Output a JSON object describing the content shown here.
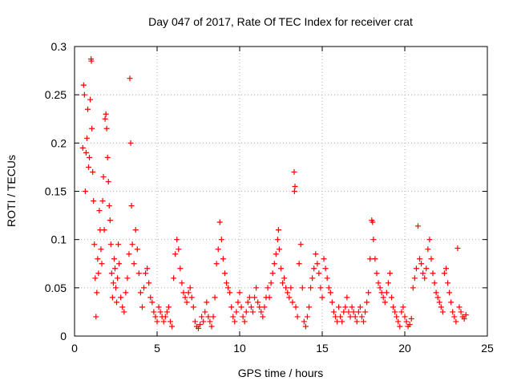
{
  "chart_data": {
    "type": "scatter",
    "title": "Day 047 of 2017, Rate Of TEC Index for receiver crat",
    "xlabel": "GPS time / hours",
    "ylabel": "ROTI / TECUs",
    "xlim": [
      0,
      25
    ],
    "ylim": [
      0,
      0.3
    ],
    "xticks": [
      "0",
      "5",
      "10",
      "15",
      "20",
      "25"
    ],
    "yticks": [
      "0",
      "0.05",
      "0.1",
      "0.15",
      "0.2",
      "0.25",
      "0.3"
    ],
    "grid": true,
    "marker": "+",
    "marker_color": "#ff0000",
    "series": [
      {
        "name": "ROTI",
        "points": [
          [
            0.5,
            0.195
          ],
          [
            0.55,
            0.26
          ],
          [
            0.6,
            0.25
          ],
          [
            0.65,
            0.15
          ],
          [
            0.7,
            0.19
          ],
          [
            0.75,
            0.205
          ],
          [
            0.8,
            0.235
          ],
          [
            0.85,
            0.175
          ],
          [
            0.9,
            0.185
          ],
          [
            0.95,
            0.245
          ],
          [
            1.0,
            0.287
          ],
          [
            1.02,
            0.285
          ],
          [
            1.05,
            0.215
          ],
          [
            1.1,
            0.17
          ],
          [
            1.15,
            0.14
          ],
          [
            1.2,
            0.095
          ],
          [
            1.25,
            0.06
          ],
          [
            1.3,
            0.02
          ],
          [
            1.35,
            0.045
          ],
          [
            1.4,
            0.08
          ],
          [
            1.45,
            0.065
          ],
          [
            1.5,
            0.13
          ],
          [
            1.55,
            0.11
          ],
          [
            1.6,
            0.09
          ],
          [
            1.65,
            0.075
          ],
          [
            1.7,
            0.14
          ],
          [
            1.75,
            0.165
          ],
          [
            1.8,
            0.11
          ],
          [
            1.85,
            0.225
          ],
          [
            1.9,
            0.23
          ],
          [
            1.95,
            0.215
          ],
          [
            2.0,
            0.185
          ],
          [
            2.05,
            0.16
          ],
          [
            2.1,
            0.135
          ],
          [
            2.15,
            0.12
          ],
          [
            2.2,
            0.095
          ],
          [
            2.25,
            0.065
          ],
          [
            2.3,
            0.04
          ],
          [
            2.35,
            0.055
          ],
          [
            2.4,
            0.08
          ],
          [
            2.45,
            0.07
          ],
          [
            2.5,
            0.05
          ],
          [
            2.55,
            0.035
          ],
          [
            2.6,
            0.06
          ],
          [
            2.65,
            0.095
          ],
          [
            2.7,
            0.075
          ],
          [
            2.8,
            0.04
          ],
          [
            2.9,
            0.03
          ],
          [
            3.0,
            0.025
          ],
          [
            3.1,
            0.045
          ],
          [
            3.2,
            0.06
          ],
          [
            3.3,
            0.085
          ],
          [
            3.35,
            0.267
          ],
          [
            3.4,
            0.2
          ],
          [
            3.45,
            0.135
          ],
          [
            3.5,
            0.095
          ],
          [
            3.6,
            0.075
          ],
          [
            3.7,
            0.11
          ],
          [
            3.8,
            0.09
          ],
          [
            3.9,
            0.065
          ],
          [
            4.0,
            0.045
          ],
          [
            4.1,
            0.03
          ],
          [
            4.2,
            0.05
          ],
          [
            4.3,
            0.065
          ],
          [
            4.4,
            0.07
          ],
          [
            4.5,
            0.055
          ],
          [
            4.6,
            0.04
          ],
          [
            4.7,
            0.035
          ],
          [
            4.8,
            0.025
          ],
          [
            4.9,
            0.02
          ],
          [
            5.0,
            0.015
          ],
          [
            5.1,
            0.03
          ],
          [
            5.2,
            0.025
          ],
          [
            5.3,
            0.02
          ],
          [
            5.4,
            0.015
          ],
          [
            5.5,
            0.02
          ],
          [
            5.6,
            0.025
          ],
          [
            5.7,
            0.03
          ],
          [
            5.8,
            0.015
          ],
          [
            5.9,
            0.01
          ],
          [
            6.0,
            0.06
          ],
          [
            6.1,
            0.085
          ],
          [
            6.2,
            0.1
          ],
          [
            6.3,
            0.09
          ],
          [
            6.4,
            0.07
          ],
          [
            6.5,
            0.055
          ],
          [
            6.6,
            0.045
          ],
          [
            6.7,
            0.04
          ],
          [
            6.8,
            0.035
          ],
          [
            6.9,
            0.045
          ],
          [
            7.0,
            0.05
          ],
          [
            7.1,
            0.04
          ],
          [
            7.2,
            0.03
          ],
          [
            7.3,
            0.015
          ],
          [
            7.4,
            0.01
          ],
          [
            7.5,
            0.008
          ],
          [
            7.6,
            0.012
          ],
          [
            7.7,
            0.02
          ],
          [
            7.8,
            0.015
          ],
          [
            7.9,
            0.025
          ],
          [
            8.0,
            0.035
          ],
          [
            8.1,
            0.02
          ],
          [
            8.2,
            0.015
          ],
          [
            8.3,
            0.01
          ],
          [
            8.4,
            0.02
          ],
          [
            8.5,
            0.04
          ],
          [
            8.6,
            0.075
          ],
          [
            8.7,
            0.09
          ],
          [
            8.8,
            0.118
          ],
          [
            8.9,
            0.1
          ],
          [
            9.0,
            0.08
          ],
          [
            9.1,
            0.065
          ],
          [
            9.2,
            0.055
          ],
          [
            9.3,
            0.05
          ],
          [
            9.4,
            0.045
          ],
          [
            9.5,
            0.03
          ],
          [
            9.6,
            0.02
          ],
          [
            9.7,
            0.015
          ],
          [
            9.8,
            0.025
          ],
          [
            9.9,
            0.035
          ],
          [
            10.0,
            0.045
          ],
          [
            10.1,
            0.03
          ],
          [
            10.2,
            0.02
          ],
          [
            10.3,
            0.015
          ],
          [
            10.4,
            0.025
          ],
          [
            10.5,
            0.035
          ],
          [
            10.6,
            0.04
          ],
          [
            10.7,
            0.03
          ],
          [
            10.8,
            0.025
          ],
          [
            10.9,
            0.04
          ],
          [
            11.0,
            0.05
          ],
          [
            11.1,
            0.035
          ],
          [
            11.2,
            0.03
          ],
          [
            11.3,
            0.025
          ],
          [
            11.4,
            0.02
          ],
          [
            11.5,
            0.03
          ],
          [
            11.6,
            0.04
          ],
          [
            11.7,
            0.05
          ],
          [
            11.8,
            0.04
          ],
          [
            11.9,
            0.055
          ],
          [
            12.0,
            0.065
          ],
          [
            12.1,
            0.075
          ],
          [
            12.2,
            0.085
          ],
          [
            12.3,
            0.1
          ],
          [
            12.35,
            0.11
          ],
          [
            12.4,
            0.09
          ],
          [
            12.5,
            0.07
          ],
          [
            12.6,
            0.055
          ],
          [
            12.7,
            0.06
          ],
          [
            12.8,
            0.05
          ],
          [
            12.9,
            0.045
          ],
          [
            13.0,
            0.04
          ],
          [
            13.1,
            0.05
          ],
          [
            13.2,
            0.035
          ],
          [
            13.3,
            0.17
          ],
          [
            13.32,
            0.15
          ],
          [
            13.35,
            0.155
          ],
          [
            13.4,
            0.03
          ],
          [
            13.5,
            0.02
          ],
          [
            13.6,
            0.075
          ],
          [
            13.7,
            0.095
          ],
          [
            13.8,
            0.05
          ],
          [
            13.9,
            0.015
          ],
          [
            14.0,
            0.01
          ],
          [
            14.1,
            0.02
          ],
          [
            14.2,
            0.03
          ],
          [
            14.3,
            0.05
          ],
          [
            14.4,
            0.06
          ],
          [
            14.5,
            0.07
          ],
          [
            14.6,
            0.085
          ],
          [
            14.7,
            0.075
          ],
          [
            14.8,
            0.065
          ],
          [
            14.9,
            0.05
          ],
          [
            15.0,
            0.04
          ],
          [
            15.1,
            0.08
          ],
          [
            15.2,
            0.07
          ],
          [
            15.3,
            0.06
          ],
          [
            15.4,
            0.05
          ],
          [
            15.5,
            0.045
          ],
          [
            15.6,
            0.035
          ],
          [
            15.7,
            0.025
          ],
          [
            15.8,
            0.02
          ],
          [
            15.9,
            0.015
          ],
          [
            16.0,
            0.03
          ],
          [
            16.1,
            0.02
          ],
          [
            16.2,
            0.015
          ],
          [
            16.3,
            0.025
          ],
          [
            16.4,
            0.03
          ],
          [
            16.5,
            0.04
          ],
          [
            16.6,
            0.025
          ],
          [
            16.7,
            0.02
          ],
          [
            16.8,
            0.03
          ],
          [
            16.9,
            0.025
          ],
          [
            17.0,
            0.02
          ],
          [
            17.1,
            0.015
          ],
          [
            17.2,
            0.025
          ],
          [
            17.3,
            0.03
          ],
          [
            17.4,
            0.02
          ],
          [
            17.5,
            0.015
          ],
          [
            17.6,
            0.025
          ],
          [
            17.7,
            0.035
          ],
          [
            17.8,
            0.045
          ],
          [
            17.9,
            0.08
          ],
          [
            18.0,
            0.12
          ],
          [
            18.05,
            0.118
          ],
          [
            18.1,
            0.1
          ],
          [
            18.2,
            0.08
          ],
          [
            18.3,
            0.065
          ],
          [
            18.4,
            0.055
          ],
          [
            18.5,
            0.05
          ],
          [
            18.6,
            0.045
          ],
          [
            18.7,
            0.04
          ],
          [
            18.8,
            0.035
          ],
          [
            18.9,
            0.045
          ],
          [
            19.0,
            0.055
          ],
          [
            19.1,
            0.065
          ],
          [
            19.2,
            0.04
          ],
          [
            19.3,
            0.03
          ],
          [
            19.4,
            0.025
          ],
          [
            19.5,
            0.02
          ],
          [
            19.6,
            0.015
          ],
          [
            19.7,
            0.01
          ],
          [
            19.8,
            0.025
          ],
          [
            19.9,
            0.03
          ],
          [
            20.0,
            0.02
          ],
          [
            20.1,
            0.015
          ],
          [
            20.2,
            0.01
          ],
          [
            20.3,
            0.012
          ],
          [
            20.4,
            0.018
          ],
          [
            20.5,
            0.05
          ],
          [
            20.6,
            0.06
          ],
          [
            20.7,
            0.07
          ],
          [
            20.8,
            0.114
          ],
          [
            20.9,
            0.08
          ],
          [
            21.0,
            0.075
          ],
          [
            21.1,
            0.065
          ],
          [
            21.2,
            0.06
          ],
          [
            21.3,
            0.07
          ],
          [
            21.4,
            0.09
          ],
          [
            21.5,
            0.1
          ],
          [
            21.6,
            0.08
          ],
          [
            21.7,
            0.065
          ],
          [
            21.8,
            0.055
          ],
          [
            21.9,
            0.045
          ],
          [
            22.0,
            0.04
          ],
          [
            22.1,
            0.035
          ],
          [
            22.2,
            0.03
          ],
          [
            22.3,
            0.025
          ],
          [
            22.4,
            0.065
          ],
          [
            22.5,
            0.07
          ],
          [
            22.6,
            0.055
          ],
          [
            22.7,
            0.045
          ],
          [
            22.8,
            0.035
          ],
          [
            22.9,
            0.025
          ],
          [
            23.0,
            0.02
          ],
          [
            23.1,
            0.015
          ],
          [
            23.2,
            0.091
          ],
          [
            23.3,
            0.03
          ],
          [
            23.4,
            0.025
          ],
          [
            23.5,
            0.02
          ],
          [
            23.6,
            0.018
          ],
          [
            23.7,
            0.022
          ]
        ]
      }
    ]
  }
}
